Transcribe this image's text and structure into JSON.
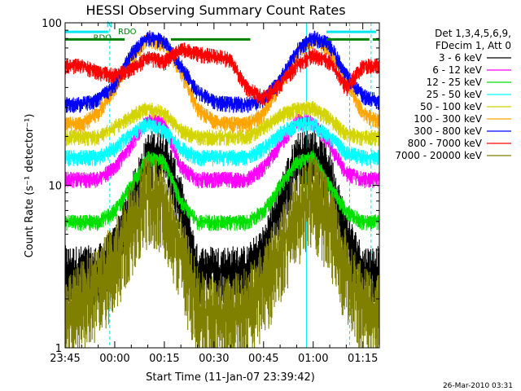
{
  "chart_data": {
    "type": "line",
    "title": "HESSI Observing Summary Count Rates",
    "xlabel": "Start Time (11-Jan-07 23:39:42)",
    "ylabel": "Count Rate (s⁻¹ detector⁻¹)",
    "yscale": "log",
    "ylim": [
      1,
      100
    ],
    "xlim_minutes": [
      -15,
      80
    ],
    "x_tick_labels": [
      "23:45",
      "00:00",
      "00:15",
      "00:30",
      "00:45",
      "01:00",
      "01:15"
    ],
    "x_tick_minutes": [
      -15,
      0,
      15,
      30,
      45,
      60,
      75
    ],
    "y_tick_labels": [
      "1",
      "10",
      "100"
    ],
    "y_tick_values": [
      1,
      10,
      100
    ],
    "grid": false,
    "legend_position": "right",
    "legend_header": [
      "Det 1,3,4,5,6,9,",
      "FDecim 1, Att 0"
    ],
    "annotations": [
      {
        "text": "N",
        "x_minutes": -2.5,
        "y": 94,
        "color": "#00c8c8"
      },
      {
        "text": "RDO",
        "x_minutes": 1,
        "y": 85,
        "color": "#008000"
      },
      {
        "text": "RDO",
        "x_minutes": -6.5,
        "y": 78,
        "color": "#008000"
      }
    ],
    "flag_bars": [
      {
        "name": "night",
        "color": "#00e5ee",
        "y": 88,
        "segments": [
          [
            -15,
            -2
          ],
          [
            64,
            79
          ]
        ]
      },
      {
        "name": "saa/rdo",
        "color": "#008000",
        "y": 79,
        "segments": [
          [
            -15,
            3
          ],
          [
            17,
            41
          ],
          [
            64,
            77
          ],
          [
            78,
            80
          ]
        ]
      }
    ],
    "vertical_markers": [
      {
        "x_minutes": -1.5,
        "style": "dashed",
        "color": "#00e5ee"
      },
      {
        "x_minutes": 58,
        "style": "solid",
        "color": "#00e5ee"
      },
      {
        "x_minutes": 71,
        "style": "dashed",
        "color": "#00e5ee"
      },
      {
        "x_minutes": 77.5,
        "style": "dashed",
        "color": "#00e5ee"
      }
    ],
    "x": [
      -15,
      -10,
      -5,
      0,
      5,
      10,
      15,
      20,
      25,
      30,
      35,
      40,
      45,
      50,
      55,
      60,
      65,
      70,
      75,
      80
    ],
    "series": [
      {
        "name": "3 - 6 keV",
        "color": "#000000",
        "values": [
          3,
          3,
          3,
          4,
          8,
          15,
          16,
          8,
          3,
          3,
          3,
          3,
          4,
          8,
          15,
          16,
          12,
          5,
          3,
          3
        ]
      },
      {
        "name": "6 - 12 keV",
        "color": "#ff00ff",
        "values": [
          11,
          11,
          11,
          13,
          18,
          26,
          24,
          13,
          11,
          11,
          11,
          11,
          13,
          18,
          25,
          25,
          18,
          12,
          11,
          11
        ]
      },
      {
        "name": "12 - 25 keV",
        "color": "#00e000",
        "values": [
          6,
          6,
          6,
          7,
          10,
          15,
          14,
          8,
          6,
          6,
          6,
          6,
          7,
          10,
          14,
          15,
          10,
          7,
          6,
          6
        ]
      },
      {
        "name": "25 - 50 keV",
        "color": "#00ffff",
        "values": [
          15,
          15,
          15,
          17,
          21,
          24,
          22,
          17,
          15,
          15,
          15,
          15,
          17,
          21,
          24,
          24,
          20,
          16,
          15,
          15
        ]
      },
      {
        "name": "50 - 100 keV",
        "color": "#d4d400",
        "values": [
          20,
          20,
          20,
          23,
          27,
          30,
          28,
          22,
          20,
          20,
          20,
          20,
          23,
          27,
          30,
          30,
          26,
          21,
          20,
          20
        ]
      },
      {
        "name": "100 - 300 keV",
        "color": "#ffa500",
        "values": [
          24,
          24,
          28,
          40,
          62,
          80,
          75,
          50,
          30,
          25,
          24,
          24,
          28,
          42,
          65,
          80,
          70,
          45,
          28,
          25
        ]
      },
      {
        "name": "300 - 800 keV",
        "color": "#0000ff",
        "values": [
          32,
          32,
          34,
          42,
          65,
          82,
          78,
          55,
          38,
          33,
          32,
          32,
          34,
          45,
          68,
          82,
          74,
          48,
          36,
          33
        ]
      },
      {
        "name": "800 - 7000 keV",
        "color": "#ff0000",
        "values": [
          55,
          55,
          50,
          48,
          52,
          62,
          58,
          70,
          65,
          63,
          60,
          40,
          35,
          42,
          55,
          64,
          58,
          40,
          55,
          55
        ]
      },
      {
        "name": "7000 - 20000 keV",
        "color": "#808000",
        "values": [
          1.6,
          2,
          2.5,
          3.5,
          6,
          9,
          8,
          4,
          1.8,
          1.6,
          1.6,
          1.8,
          2.5,
          4,
          7,
          9,
          6,
          3,
          1.8,
          1.6
        ]
      }
    ]
  },
  "footer_timestamp": "26-Mar-2010 03:31"
}
